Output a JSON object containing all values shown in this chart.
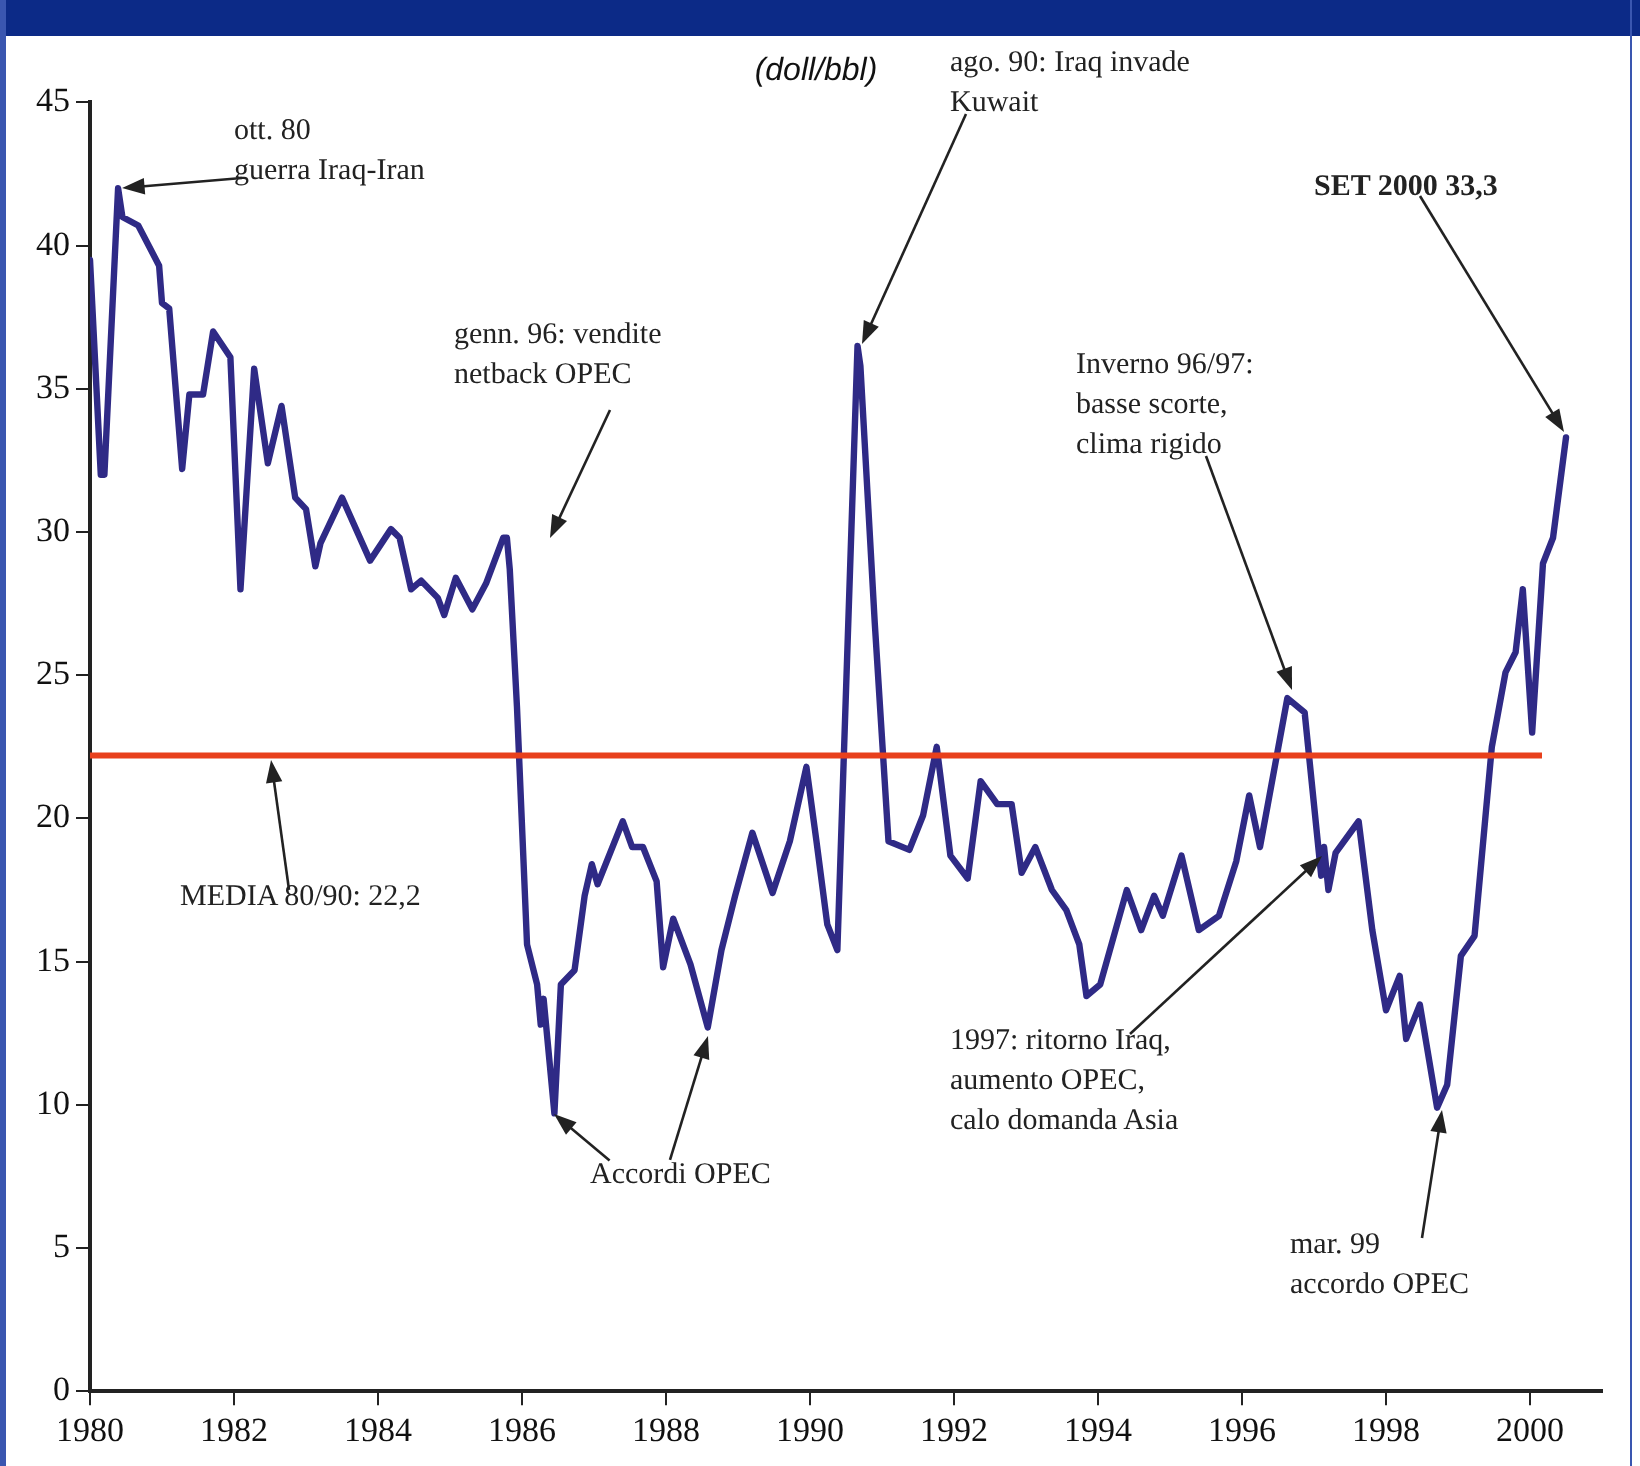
{
  "chart_data": {
    "type": "line",
    "subtitle": "(doll/bbl)",
    "x": [
      1980,
      1980.05,
      1980.15,
      1980.2,
      1980.39,
      1980.45,
      1980.67,
      1980.96,
      1981.0,
      1981.1,
      1981.28,
      1981.38,
      1981.57,
      1981.71,
      1981.95,
      1982.09,
      1982.28,
      1982.47,
      1982.66,
      1982.85,
      1983.0,
      1983.13,
      1983.2,
      1983.5,
      1983.89,
      1984.18,
      1984.3,
      1984.46,
      1984.6,
      1984.83,
      1984.92,
      1985.08,
      1985.31,
      1985.5,
      1985.74,
      1985.79,
      1985.83,
      1985.93,
      1986.07,
      1986.21,
      1986.26,
      1986.3,
      1986.45,
      1986.54,
      1986.73,
      1986.87,
      1986.97,
      1987.05,
      1987.4,
      1987.53,
      1987.68,
      1987.87,
      1987.96,
      1988.1,
      1988.34,
      1988.58,
      1988.77,
      1988.96,
      1989.2,
      1989.48,
      1989.72,
      1989.95,
      1990.09,
      1990.24,
      1990.38,
      1990.66,
      1990.7,
      1990.9,
      1991.09,
      1991.38,
      1991.57,
      1991.76,
      1991.95,
      1992.19,
      1992.37,
      1992.6,
      1992.8,
      1992.94,
      1993.13,
      1993.36,
      1993.56,
      1993.74,
      1993.84,
      1994.03,
      1994.4,
      1994.6,
      1994.78,
      1994.9,
      1995.16,
      1995.4,
      1995.68,
      1995.92,
      1996.1,
      1996.25,
      1996.63,
      1996.87,
      1997.1,
      1997.14,
      1997.2,
      1997.3,
      1997.62,
      1997.81,
      1998.0,
      1998.19,
      1998.28,
      1998.47,
      1998.71,
      1998.85,
      1999.04,
      1999.23,
      1999.47,
      1999.66,
      1999.8,
      1999.9,
      2000.03,
      2000.18,
      2000.32,
      2000.5
    ],
    "series": [
      {
        "color": "#2f2a86",
        "values": [
          39.5,
          37,
          32,
          32,
          42,
          41,
          40.7,
          39.3,
          38,
          37.8,
          32.2,
          34.8,
          34.8,
          37,
          36.1,
          28,
          35.7,
          32.4,
          34.4,
          31.2,
          30.8,
          28.8,
          29.6,
          31.2,
          29,
          30.1,
          29.8,
          28,
          28.3,
          27.7,
          27.1,
          28.4,
          27.3,
          28.2,
          29.8,
          29.8,
          28.7,
          23.9,
          15.6,
          14.2,
          12.8,
          13.7,
          9.7,
          14.2,
          14.7,
          17.3,
          18.4,
          17.7,
          19.9,
          19,
          19,
          17.8,
          14.8,
          16.5,
          14.9,
          12.7,
          15.4,
          17.3,
          19.5,
          17.4,
          19.2,
          21.8,
          19.2,
          16.3,
          15.4,
          36.5,
          35.8,
          26.8,
          19.2,
          18.9,
          20.1,
          22.5,
          18.7,
          17.9,
          21.3,
          20.5,
          20.5,
          18.1,
          19,
          17.5,
          16.8,
          15.6,
          13.8,
          14.2,
          17.5,
          16.1,
          17.3,
          16.6,
          18.7,
          16.1,
          16.6,
          18.5,
          20.8,
          19,
          24.2,
          23.7,
          18,
          19,
          17.5,
          18.8,
          19.9,
          16.1,
          13.3,
          14.5,
          12.3,
          13.5,
          9.9,
          10.7,
          15.2,
          15.9,
          22.5,
          25.1,
          25.8,
          28,
          23,
          28.9,
          29.8,
          33.3
        ]
      }
    ],
    "xlim": [
      1980,
      2001
    ],
    "xticks": [
      1980,
      1982,
      1984,
      1986,
      1988,
      1990,
      1992,
      1994,
      1996,
      1998,
      2000
    ],
    "ylim": [
      0,
      45
    ],
    "yticks": [
      0,
      5,
      10,
      15,
      20,
      25,
      30,
      35,
      40,
      45
    ],
    "grid": false,
    "legend": false,
    "marker": "none",
    "line_style": "solid",
    "ref_lines": [
      {
        "axis": "y",
        "value": 22.2,
        "color": "#e8401c"
      }
    ],
    "annotations": [
      "ott. 80\nguerra Iraq-Iran",
      "genn. 96: vendite\nnetback OPEC",
      "ago. 90: Iraq invade\nKuwait",
      "SET 2000 33,3",
      "Inverno 96/97:\nbasse scorte,\nclima rigido",
      "1997: ritorno Iraq,\naumento OPEC,\ncalo domanda Asia",
      {
        "text": "Accordi OPEC",
        "x": 1986.45,
        "y": 9.7
      },
      "mar. 99\naccordo OPEC",
      "MEDIA 80/90: 22,2"
    ]
  }
}
